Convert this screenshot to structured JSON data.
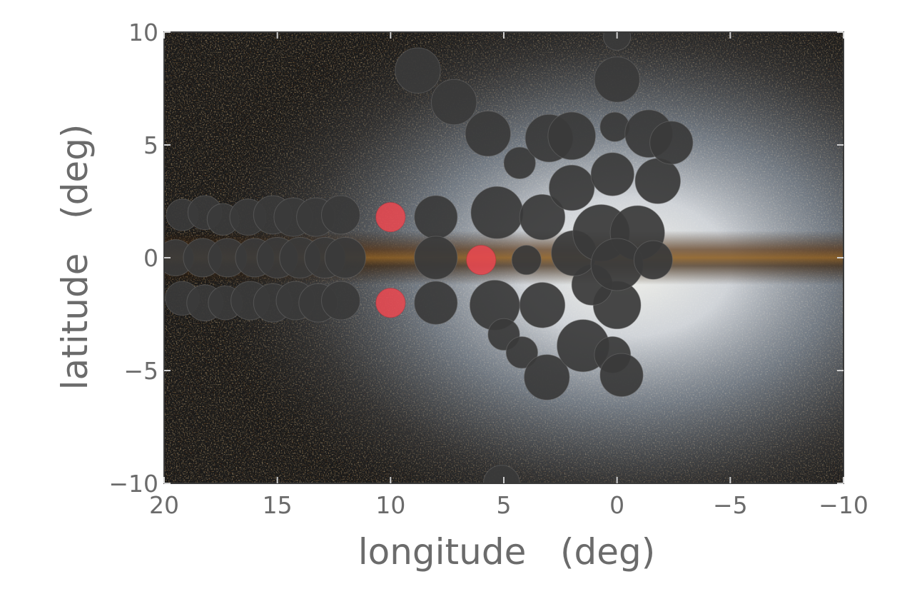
{
  "chart_data": {
    "type": "scatter",
    "title": "",
    "xlabel": "longitude   (deg)",
    "ylabel": "latitude   (deg)",
    "xlim": [
      20,
      -10
    ],
    "ylim": [
      -10,
      10
    ],
    "x_ticks": [
      20,
      15,
      10,
      5,
      0,
      -5,
      -10
    ],
    "y_ticks": [
      10,
      5,
      0,
      -5,
      -10
    ],
    "x_tick_labels": [
      "20",
      "15",
      "10",
      "5",
      "0",
      "−5",
      "−10"
    ],
    "y_tick_labels": [
      "10",
      "5",
      "0",
      "−5",
      "−10"
    ],
    "grid": false,
    "legend": "none",
    "background": "Galactic bulge star map (near-infrared colour image)",
    "colors": {
      "dark_fields": "#3a3a3a",
      "highlighted_fields": "#e84850",
      "text": "#6b6b6b"
    },
    "series": [
      {
        "kind": "dark_fields",
        "points": [
          {
            "x": 19.2,
            "y": 1.9,
            "r": 0.7
          },
          {
            "x": 18.2,
            "y": 2.0,
            "r": 0.75
          },
          {
            "x": 17.4,
            "y": 1.7,
            "r": 0.7
          },
          {
            "x": 16.3,
            "y": 1.8,
            "r": 0.8
          },
          {
            "x": 15.2,
            "y": 1.9,
            "r": 0.85
          },
          {
            "x": 14.3,
            "y": 1.8,
            "r": 0.85
          },
          {
            "x": 13.3,
            "y": 1.8,
            "r": 0.85
          },
          {
            "x": 12.2,
            "y": 1.9,
            "r": 0.85
          },
          {
            "x": 19.5,
            "y": 0.0,
            "r": 0.8
          },
          {
            "x": 18.3,
            "y": 0.0,
            "r": 0.85
          },
          {
            "x": 17.2,
            "y": 0.0,
            "r": 0.85
          },
          {
            "x": 16.0,
            "y": 0.0,
            "r": 0.85
          },
          {
            "x": 15.0,
            "y": 0.0,
            "r": 0.9
          },
          {
            "x": 14.0,
            "y": 0.0,
            "r": 0.9
          },
          {
            "x": 12.9,
            "y": 0.0,
            "r": 0.9
          },
          {
            "x": 12.0,
            "y": 0.0,
            "r": 0.9
          },
          {
            "x": 19.2,
            "y": -1.8,
            "r": 0.75
          },
          {
            "x": 18.2,
            "y": -2.0,
            "r": 0.8
          },
          {
            "x": 17.3,
            "y": -2.0,
            "r": 0.75
          },
          {
            "x": 16.2,
            "y": -1.9,
            "r": 0.85
          },
          {
            "x": 15.2,
            "y": -2.0,
            "r": 0.85
          },
          {
            "x": 14.2,
            "y": -1.9,
            "r": 0.85
          },
          {
            "x": 13.2,
            "y": -2.0,
            "r": 0.85
          },
          {
            "x": 12.2,
            "y": -1.9,
            "r": 0.85
          },
          {
            "x": 8.0,
            "y": 1.8,
            "r": 0.95
          },
          {
            "x": 8.0,
            "y": 0.0,
            "r": 0.95
          },
          {
            "x": 8.0,
            "y": -2.0,
            "r": 0.95
          },
          {
            "x": 5.3,
            "y": 2.0,
            "r": 1.15
          },
          {
            "x": 3.3,
            "y": 1.8,
            "r": 1.0
          },
          {
            "x": 4.0,
            "y": -0.1,
            "r": 0.65
          },
          {
            "x": 5.4,
            "y": -2.1,
            "r": 1.1
          },
          {
            "x": 3.3,
            "y": -2.1,
            "r": 1.0
          },
          {
            "x": 5.0,
            "y": -3.4,
            "r": 0.7
          },
          {
            "x": 4.2,
            "y": -4.2,
            "r": 0.7
          },
          {
            "x": 3.1,
            "y": -5.3,
            "r": 1.0
          },
          {
            "x": 1.5,
            "y": -3.9,
            "r": 1.15
          },
          {
            "x": 0.2,
            "y": -4.3,
            "r": 0.8
          },
          {
            "x": -0.2,
            "y": -5.2,
            "r": 0.95
          },
          {
            "x": 0.0,
            "y": -2.1,
            "r": 1.05
          },
          {
            "x": 1.1,
            "y": -1.2,
            "r": 0.9
          },
          {
            "x": 1.9,
            "y": 0.2,
            "r": 1.0
          },
          {
            "x": 0.7,
            "y": 1.1,
            "r": 1.25
          },
          {
            "x": -0.9,
            "y": 1.1,
            "r": 1.2
          },
          {
            "x": 0.0,
            "y": -0.3,
            "r": 1.15
          },
          {
            "x": -1.6,
            "y": -0.1,
            "r": 0.85
          },
          {
            "x": 2.0,
            "y": 3.1,
            "r": 1.0
          },
          {
            "x": 0.2,
            "y": 3.7,
            "r": 0.95
          },
          {
            "x": -1.8,
            "y": 3.4,
            "r": 1.0
          },
          {
            "x": 4.3,
            "y": 4.2,
            "r": 0.7
          },
          {
            "x": 3.0,
            "y": 5.3,
            "r": 1.05
          },
          {
            "x": 2.0,
            "y": 5.4,
            "r": 1.05
          },
          {
            "x": 0.1,
            "y": 5.8,
            "r": 0.65
          },
          {
            "x": -1.4,
            "y": 5.5,
            "r": 1.05
          },
          {
            "x": -2.4,
            "y": 5.1,
            "r": 0.95
          },
          {
            "x": 5.7,
            "y": 5.5,
            "r": 1.0
          },
          {
            "x": 7.2,
            "y": 6.9,
            "r": 1.0
          },
          {
            "x": 8.8,
            "y": 8.3,
            "r": 1.0
          },
          {
            "x": 0.0,
            "y": 7.9,
            "r": 1.0
          },
          {
            "x": 0.0,
            "y": 9.8,
            "r": 0.6
          },
          {
            "x": 5.1,
            "y": -10.0,
            "r": 0.8
          }
        ]
      },
      {
        "kind": "highlighted_fields",
        "points": [
          {
            "x": 10.0,
            "y": 1.8,
            "r": 0.65
          },
          {
            "x": 6.0,
            "y": -0.1,
            "r": 0.65
          },
          {
            "x": 10.0,
            "y": -2.0,
            "r": 0.65
          }
        ]
      }
    ]
  }
}
